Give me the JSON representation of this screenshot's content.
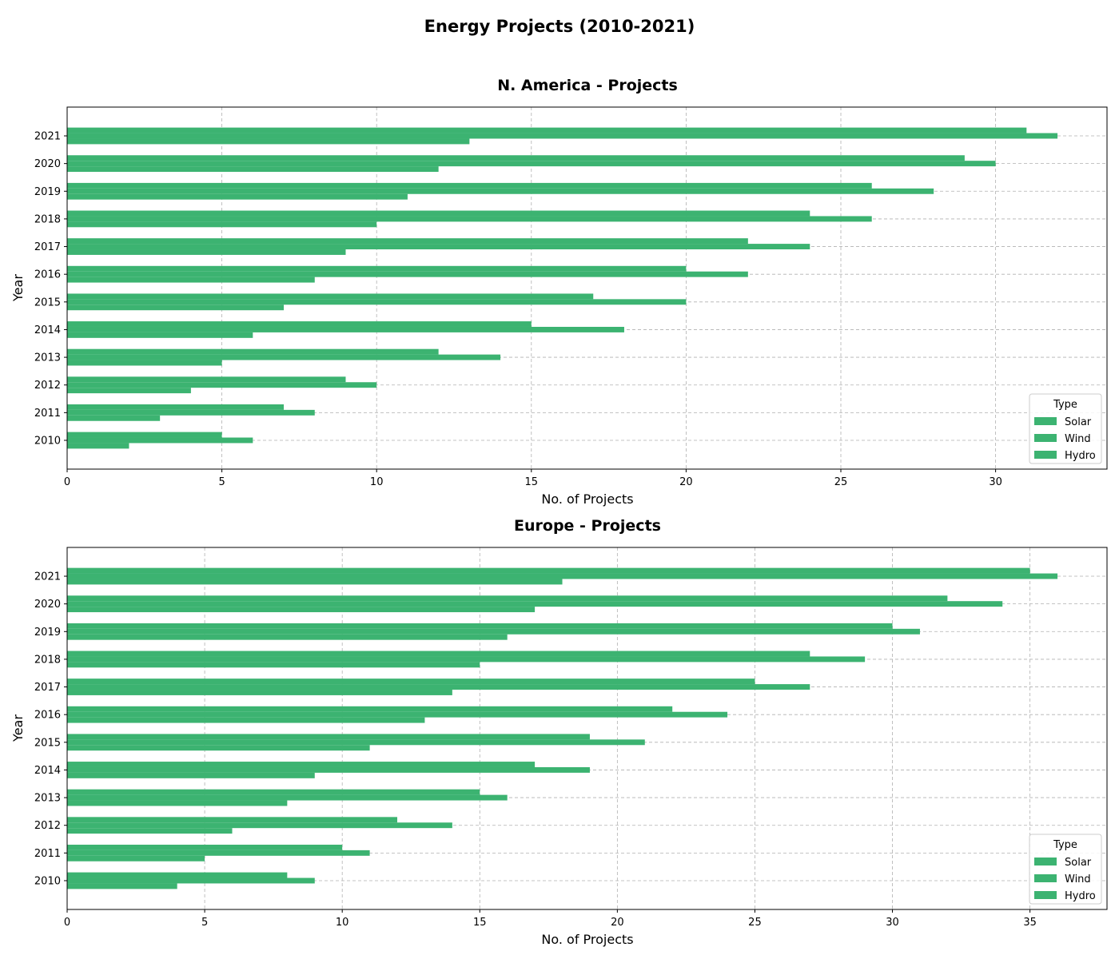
{
  "figure_title": "Energy Projects (2010-2021)",
  "chart_data": [
    {
      "type": "bar",
      "orientation": "horizontal",
      "title": "N. America - Projects",
      "xlabel": "No. of Projects",
      "ylabel": "Year",
      "categories": [
        "2010",
        "2011",
        "2012",
        "2013",
        "2014",
        "2015",
        "2016",
        "2017",
        "2018",
        "2019",
        "2020",
        "2021"
      ],
      "xlim": [
        0,
        33.6
      ],
      "xticks": [
        0,
        5,
        10,
        15,
        20,
        25,
        30
      ],
      "grid": true,
      "legend": {
        "title": "Type",
        "placement": "lower-right"
      },
      "series": [
        {
          "name": "Solar",
          "color": "#3cb371",
          "values": [
            2,
            3,
            4,
            5,
            6,
            7,
            8,
            9,
            10,
            11,
            12,
            13
          ]
        },
        {
          "name": "Wind",
          "color": "#3cb371",
          "values": [
            6,
            8,
            10,
            14,
            18,
            20,
            22,
            24,
            26,
            28,
            30,
            32
          ]
        },
        {
          "name": "Hydro",
          "color": "#3cb371",
          "values": [
            5,
            7,
            9,
            12,
            15,
            17,
            20,
            22,
            24,
            26,
            29,
            31
          ]
        }
      ]
    },
    {
      "type": "bar",
      "orientation": "horizontal",
      "title": "Europe - Projects",
      "xlabel": "No. of Projects",
      "ylabel": "Year",
      "categories": [
        "2010",
        "2011",
        "2012",
        "2013",
        "2014",
        "2015",
        "2016",
        "2017",
        "2018",
        "2019",
        "2020",
        "2021"
      ],
      "xlim": [
        0,
        37.8
      ],
      "xticks": [
        0,
        5,
        10,
        15,
        20,
        25,
        30,
        35
      ],
      "grid": true,
      "legend": {
        "title": "Type",
        "placement": "lower-right"
      },
      "series": [
        {
          "name": "Solar",
          "color": "#3cb371",
          "values": [
            4,
            5,
            6,
            8,
            9,
            11,
            13,
            14,
            15,
            16,
            17,
            18
          ]
        },
        {
          "name": "Wind",
          "color": "#3cb371",
          "values": [
            9,
            11,
            14,
            16,
            19,
            21,
            24,
            27,
            29,
            31,
            34,
            36
          ]
        },
        {
          "name": "Hydro",
          "color": "#3cb371",
          "values": [
            8,
            10,
            12,
            15,
            17,
            19,
            22,
            25,
            27,
            30,
            32,
            35
          ]
        }
      ]
    }
  ]
}
